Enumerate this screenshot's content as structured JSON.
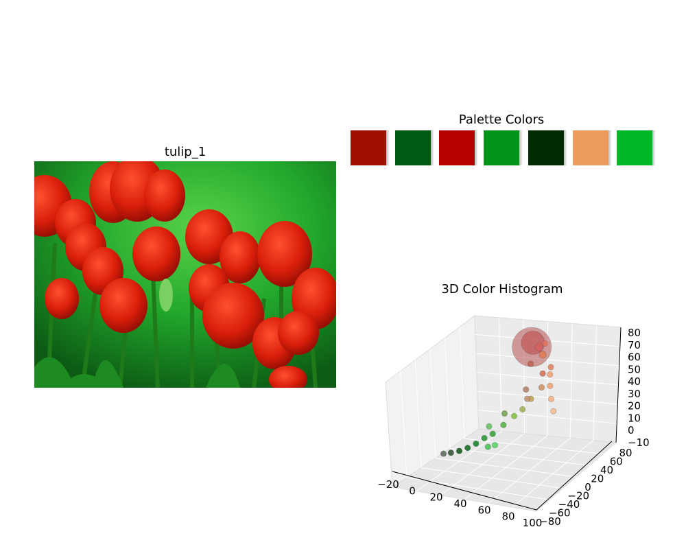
{
  "image_panel": {
    "title": "tulip_1"
  },
  "palette_panel": {
    "title": "Palette Colors",
    "colors": [
      "#a00e00",
      "#005b12",
      "#b60000",
      "#00921a",
      "#002a00",
      "#ee9b5f",
      "#00b729"
    ]
  },
  "chart_data": [
    {
      "type": "scatter",
      "projection": "3d",
      "title": "3D Color Histogram",
      "xlabel": "",
      "ylabel": "",
      "zlabel": "",
      "xlim": [
        -20,
        100
      ],
      "ylim": [
        -80,
        80
      ],
      "zlim": [
        -10,
        80
      ],
      "x_ticks": [
        "−20",
        "0",
        "20",
        "40",
        "60",
        "80",
        "100"
      ],
      "y_ticks": [
        "−80",
        "−60",
        "−40",
        "−20",
        "0",
        "20",
        "40",
        "60",
        "80"
      ],
      "z_ticks": [
        "−10",
        "0",
        "10",
        "20",
        "30",
        "40",
        "50",
        "60",
        "70",
        "80"
      ],
      "grid": true,
      "points": [
        {
          "x": 45,
          "y": 50,
          "z": 62,
          "size": 900,
          "color": "#b03030"
        },
        {
          "x": 48,
          "y": 45,
          "z": 68,
          "size": 320,
          "color": "#b83333"
        },
        {
          "x": 55,
          "y": 40,
          "z": 68,
          "size": 40,
          "color": "#d46060"
        },
        {
          "x": 60,
          "y": 35,
          "z": 65,
          "size": 30,
          "color": "#e07a50"
        },
        {
          "x": 70,
          "y": 25,
          "z": 55,
          "size": 20,
          "color": "#f0a070"
        },
        {
          "x": 72,
          "y": 20,
          "z": 48,
          "size": 20,
          "color": "#eea070"
        },
        {
          "x": 75,
          "y": 15,
          "z": 40,
          "size": 20,
          "color": "#f2b080"
        },
        {
          "x": 78,
          "y": 12,
          "z": 32,
          "size": 20,
          "color": "#f4b890"
        },
        {
          "x": 65,
          "y": 20,
          "z": 45,
          "size": 20,
          "color": "#d09060"
        },
        {
          "x": 60,
          "y": 10,
          "z": 38,
          "size": 20,
          "color": "#c0a050"
        },
        {
          "x": 55,
          "y": 5,
          "z": 30,
          "size": 20,
          "color": "#a0b050"
        },
        {
          "x": 50,
          "y": 0,
          "z": 25,
          "size": 20,
          "color": "#80c040"
        },
        {
          "x": 45,
          "y": -10,
          "z": 20,
          "size": 20,
          "color": "#50b040"
        },
        {
          "x": 40,
          "y": -20,
          "z": 15,
          "size": 20,
          "color": "#30a030"
        },
        {
          "x": 35,
          "y": -25,
          "z": 12,
          "size": 20,
          "color": "#209030"
        },
        {
          "x": 30,
          "y": -30,
          "z": 8,
          "size": 20,
          "color": "#108020"
        },
        {
          "x": 25,
          "y": -35,
          "z": 5,
          "size": 20,
          "color": "#0c6a1a"
        },
        {
          "x": 20,
          "y": -40,
          "z": 3,
          "size": 20,
          "color": "#0a5414"
        },
        {
          "x": 15,
          "y": -45,
          "z": 2,
          "size": 20,
          "color": "#2a4a2a"
        },
        {
          "x": 10,
          "y": -48,
          "z": 1,
          "size": 20,
          "color": "#556655"
        },
        {
          "x": 40,
          "y": -30,
          "z": 8,
          "size": 20,
          "color": "#40c050"
        },
        {
          "x": 45,
          "y": -28,
          "z": 10,
          "size": 20,
          "color": "#50d060"
        },
        {
          "x": 35,
          "y": -15,
          "z": 18,
          "size": 20,
          "color": "#60c060"
        },
        {
          "x": 55,
          "y": 15,
          "z": 35,
          "size": 20,
          "color": "#c09070"
        },
        {
          "x": 62,
          "y": 30,
          "z": 52,
          "size": 20,
          "color": "#d07050"
        },
        {
          "x": 68,
          "y": 32,
          "z": 58,
          "size": 20,
          "color": "#e08060"
        },
        {
          "x": 50,
          "y": 35,
          "z": 55,
          "size": 20,
          "color": "#c06050"
        },
        {
          "x": 58,
          "y": 45,
          "z": 70,
          "size": 20,
          "color": "#e07060"
        },
        {
          "x": 52,
          "y": 20,
          "z": 40,
          "size": 20,
          "color": "#b08060"
        },
        {
          "x": 42,
          "y": 0,
          "z": 25,
          "size": 20,
          "color": "#70a050"
        }
      ]
    }
  ]
}
